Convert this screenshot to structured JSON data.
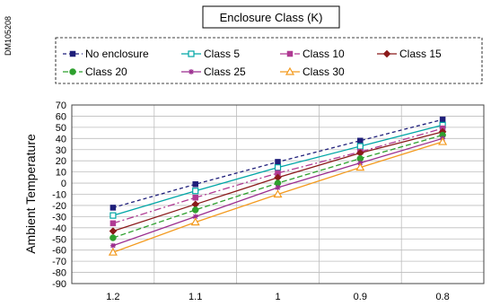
{
  "doc_id": "DM105208",
  "chart_data": {
    "type": "line",
    "title": "Enclosure Class (K)",
    "xlabel": "",
    "ylabel": "Ambient Temperature",
    "categories": [
      "1.2",
      "1.1",
      "1",
      "0.9",
      "0.8"
    ],
    "ylim": [
      -90,
      70
    ],
    "ytick_step": 10,
    "grid": true,
    "legend_position": "top",
    "series": [
      {
        "name": "No enclosure",
        "color": "#1f1f7a",
        "marker": "square-filled",
        "dash": "4,3",
        "values": [
          -22,
          -1,
          19,
          38,
          57
        ]
      },
      {
        "name": "Class 5",
        "color": "#00a6a6",
        "marker": "square-open",
        "dash": "",
        "values": [
          -29,
          -7,
          14,
          33,
          52
        ]
      },
      {
        "name": "Class 10",
        "color": "#b03a93",
        "marker": "square-filled",
        "dash": "8,3,2,3",
        "values": [
          -36,
          -13,
          9,
          28,
          49
        ]
      },
      {
        "name": "Class 15",
        "color": "#8b1a1a",
        "marker": "diamond-filled",
        "dash": "",
        "values": [
          -43,
          -19,
          5,
          27,
          46
        ]
      },
      {
        "name": "Class 20",
        "color": "#2ea02e",
        "marker": "circle-filled",
        "dash": "6,3",
        "values": [
          -49,
          -24,
          0,
          22,
          43
        ]
      },
      {
        "name": "Class 25",
        "color": "#9b2d8f",
        "marker": "star",
        "dash": "",
        "values": [
          -56,
          -30,
          -4,
          18,
          40
        ]
      },
      {
        "name": "Class 30",
        "color": "#f39a1e",
        "marker": "triangle-open",
        "dash": "",
        "values": [
          -62,
          -35,
          -10,
          14,
          37
        ]
      }
    ]
  }
}
